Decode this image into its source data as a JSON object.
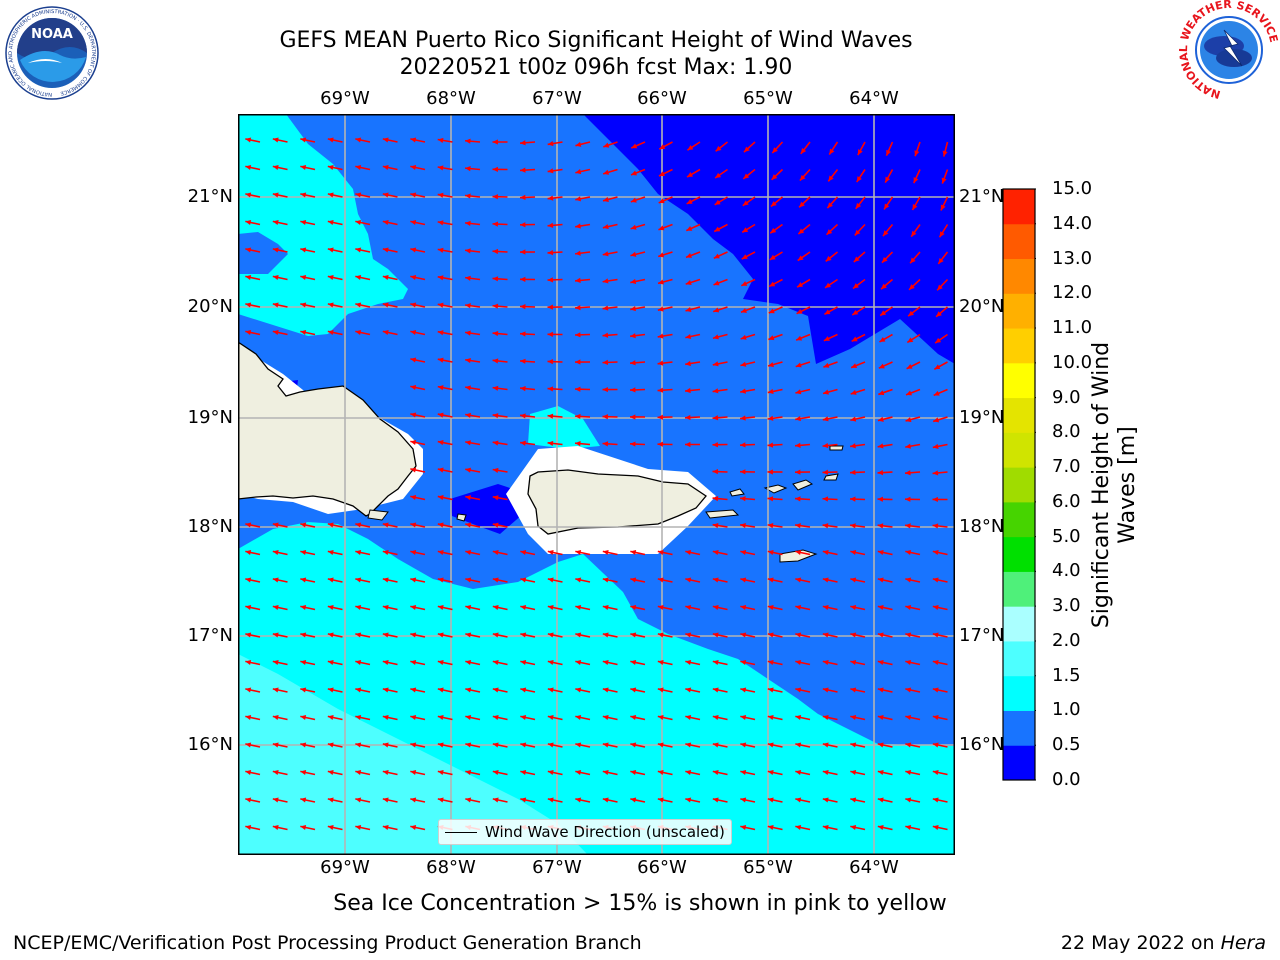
{
  "header": {
    "title_line1": "GEFS MEAN Puerto Rico Significant Height of Wind Waves",
    "title_line2": "20220521 t00z 096h fcst   Max: 1.90"
  },
  "logos": {
    "left": {
      "name": "noaa-logo",
      "text": "NOAA",
      "ring_text": "NATIONAL OCEANIC AND ATMOSPHERIC ADMINISTRATION · U.S. DEPARTMENT OF COMMERCE"
    },
    "right": {
      "name": "nws-logo",
      "ring_text": "NATIONAL WEATHER SERVICE"
    }
  },
  "map": {
    "lon_labels": [
      "69°W",
      "68°W",
      "67°W",
      "66°W",
      "65°W",
      "64°W"
    ],
    "lat_labels": [
      "21°N",
      "20°N",
      "19°N",
      "18°N",
      "17°N",
      "16°N"
    ],
    "extent": {
      "lon_min": -69.98,
      "lon_max": -63.22,
      "lat_min": 15.0,
      "lat_max": 21.75
    },
    "vector_color": "#ff0000",
    "land_color": "#efefe0",
    "legend_label": "Wind Wave Direction (unscaled)"
  },
  "colorbar": {
    "label": "Significant Height of Wind Waves [m]",
    "label_line1": "Significant Height of Wind",
    "label_line2": "Waves [m]",
    "ticks": [
      "0.0",
      "0.5",
      "1.0",
      "1.5",
      "2.0",
      "3.0",
      "4.0",
      "5.0",
      "6.0",
      "7.0",
      "8.0",
      "9.0",
      "10.0",
      "11.0",
      "12.0",
      "13.0",
      "14.0",
      "15.0"
    ],
    "colors": [
      "#0000ff",
      "#1874ff",
      "#00ffff",
      "#4dffff",
      "#aaffff",
      "#4ff07a",
      "#00e000",
      "#46d400",
      "#a0dc00",
      "#d0e400",
      "#e4e400",
      "#ffff00",
      "#ffcf00",
      "#ffb000",
      "#ff8800",
      "#ff5a00",
      "#ff2200"
    ]
  },
  "subtitle": "Sea Ice Concentration > 15% is shown in pink to yellow",
  "footer": {
    "left": "NCEP/EMC/Verification Post Processing Product Generation Branch",
    "right_date": "22 May 2022 on ",
    "right_host": "Hera"
  }
}
